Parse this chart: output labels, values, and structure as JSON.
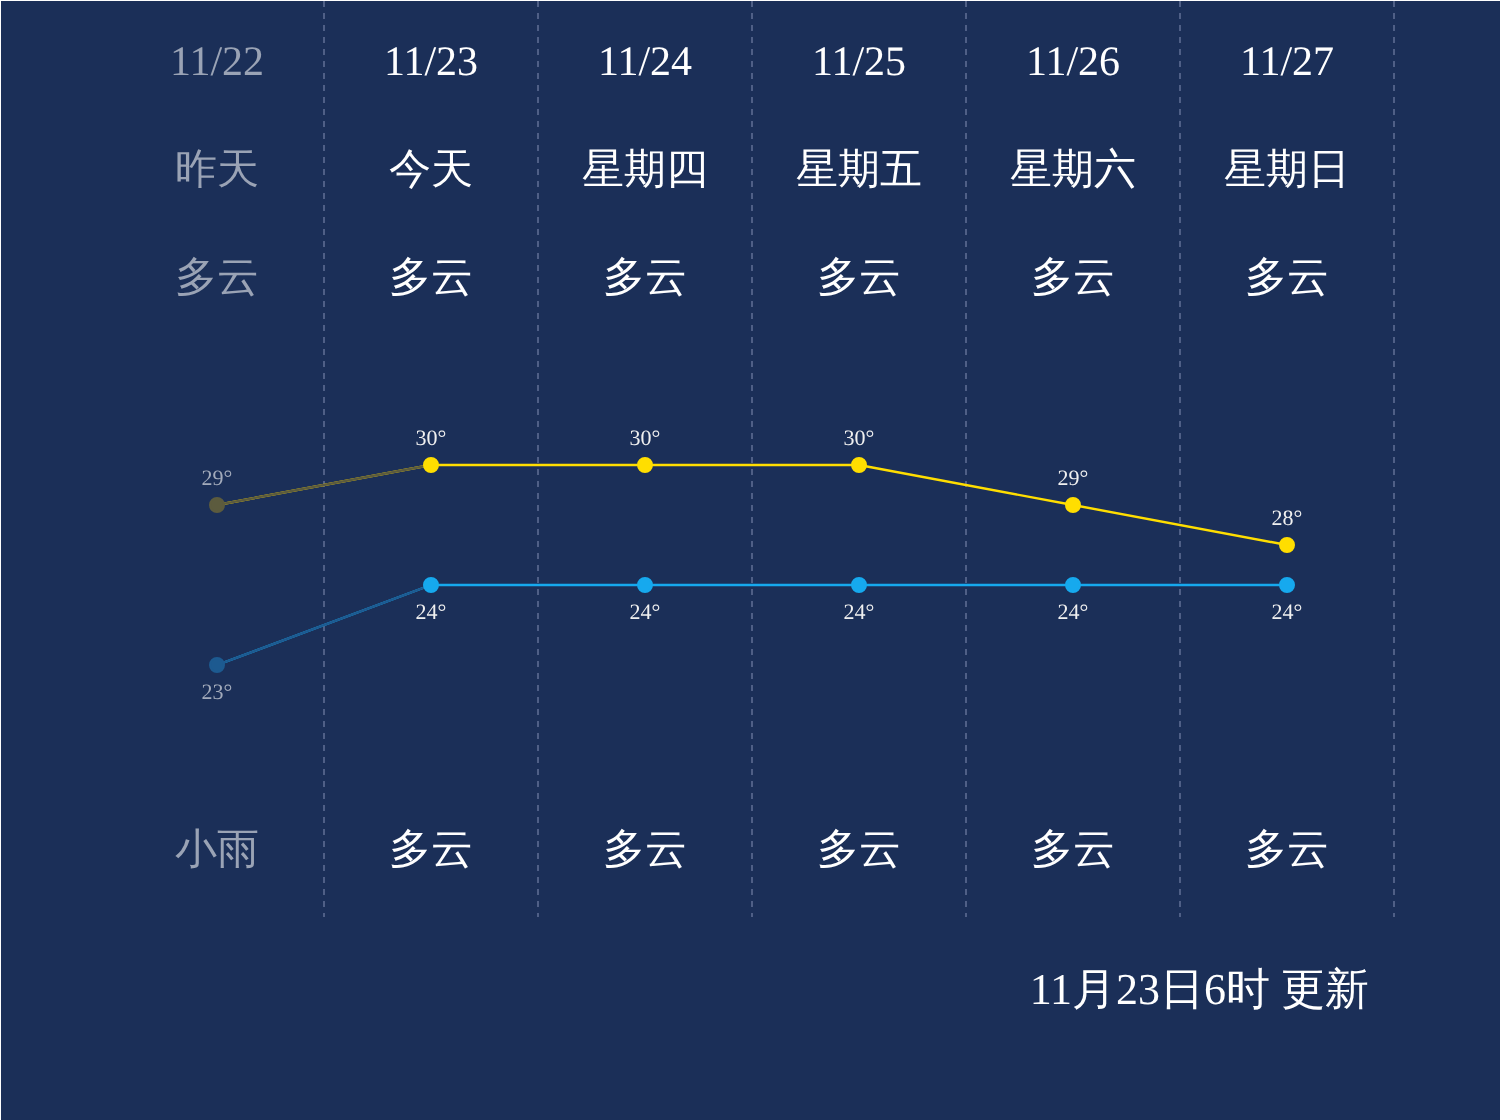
{
  "chart_data": {
    "type": "line",
    "tick_labels": "x",
    "grid": "x",
    "marker": "circle",
    "categories": [
      "11/22",
      "11/23",
      "11/24",
      "11/25",
      "11/26",
      "11/27"
    ],
    "ylim": [
      13.6,
      41.6
    ],
    "y2lim": [
      17.3,
      31.3
    ],
    "series": [
      {
        "color": "#ffde00",
        "colors": [
          "#5c5b3e",
          "#ffde00",
          "#ffde00",
          "#ffde00",
          "#ffde00",
          "#ffde00"
        ],
        "values": [
          29,
          30,
          30,
          30,
          29,
          28
        ],
        "value_labels": [
          "29°",
          "30°",
          "30°",
          "30°",
          "29°",
          "28°"
        ]
      },
      {
        "color": "#16a9ee",
        "colors": [
          "#1d5a90",
          "#16a9ee",
          "#16a9ee",
          "#16a9ee",
          "#16a9ee",
          "#16a9ee"
        ],
        "values": [
          23,
          24,
          24,
          24,
          24,
          24
        ],
        "value_labels": [
          "23°",
          "24°",
          "24°",
          "24°",
          "24°",
          "24°"
        ],
        "axis": "y2"
      }
    ],
    "annotations": [
      "昨天",
      "今天",
      "星期四",
      "星期五",
      "星期六",
      "星期日",
      "多云",
      "多云",
      "多云",
      "多云",
      "多云",
      "多云",
      "小雨",
      "多云",
      "多云",
      "多云",
      "多云",
      "多云",
      "11月23日6时 更新"
    ]
  }
}
